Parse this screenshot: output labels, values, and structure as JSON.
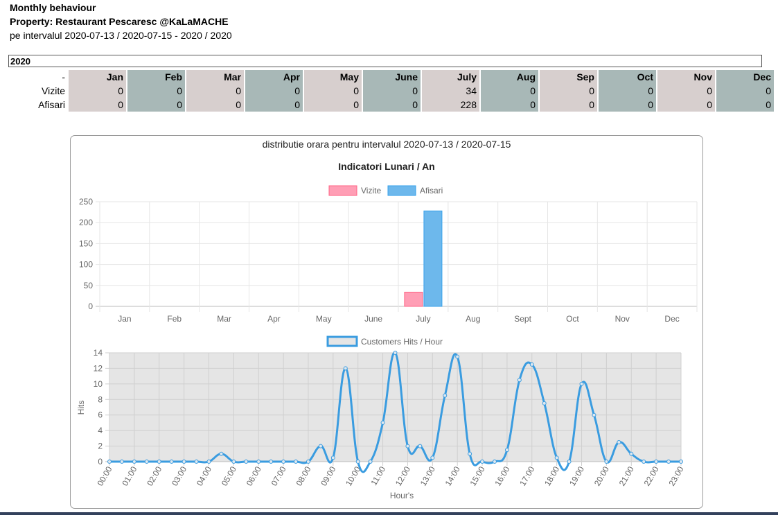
{
  "header": {
    "title": "Monthly behaviour",
    "property": "Property: Restaurant Pescaresc @KaLaMACHE",
    "interval": "pe intervalul 2020-07-13 / 2020-07-15 - 2020 / 2020"
  },
  "year": "2020",
  "table": {
    "corner": "-",
    "months": [
      "Jan",
      "Feb",
      "Mar",
      "Apr",
      "May",
      "June",
      "July",
      "Aug",
      "Sep",
      "Oct",
      "Nov",
      "Dec"
    ],
    "rows": [
      {
        "label": "Vizite",
        "values": [
          "0",
          "0",
          "0",
          "0",
          "0",
          "0",
          "34",
          "0",
          "0",
          "0",
          "0",
          "0"
        ]
      },
      {
        "label": "Afisari",
        "values": [
          "0",
          "0",
          "0",
          "0",
          "0",
          "0",
          "228",
          "0",
          "0",
          "0",
          "0",
          "0"
        ]
      }
    ]
  },
  "panel": {
    "subtitle": "distributie orara pentru intervalul 2020-07-13 / 2020-07-15"
  },
  "colors": {
    "vizite_fill": "#ff9eb5",
    "vizite_border": "#ff6384",
    "afisari_fill": "#6db8ec",
    "afisari_border": "#36a2eb",
    "hits_line": "#3a9ce0",
    "hits_fill": "#e5e5e5"
  },
  "chart_data": [
    {
      "type": "bar",
      "title": "Indicatori Lunari / An",
      "categories": [
        "Jan",
        "Feb",
        "Mar",
        "Apr",
        "May",
        "June",
        "July",
        "Aug",
        "Sept",
        "Oct",
        "Nov",
        "Dec"
      ],
      "series": [
        {
          "name": "Vizite",
          "values": [
            0,
            0,
            0,
            0,
            0,
            0,
            34,
            0,
            0,
            0,
            0,
            0
          ]
        },
        {
          "name": "Afisari",
          "values": [
            0,
            0,
            0,
            0,
            0,
            0,
            228,
            0,
            0,
            0,
            0,
            0
          ]
        }
      ],
      "ylim": [
        0,
        250
      ],
      "yticks": [
        0,
        50,
        100,
        150,
        200,
        250
      ],
      "legend": "top",
      "grid": true
    },
    {
      "type": "line",
      "xlabel": "Hour's",
      "ylabel": "Hits",
      "ylim": [
        0,
        14
      ],
      "yticks": [
        0,
        2,
        4,
        6,
        8,
        10,
        12,
        14
      ],
      "xticks": [
        "00:00",
        "01:00",
        "02:00",
        "03:00",
        "04:00",
        "05:00",
        "06:00",
        "07:00",
        "08:00",
        "09:00",
        "10:00",
        "11:00",
        "12:00",
        "13:00",
        "14:00",
        "15:00",
        "16:00",
        "17:00",
        "18:00",
        "19:00",
        "20:00",
        "21:00",
        "22:00",
        "23:00"
      ],
      "series": [
        {
          "name": "Customers Hits / Hour",
          "x": [
            0,
            0.5,
            1,
            1.5,
            2,
            2.5,
            3,
            3.5,
            4,
            4.5,
            5,
            5.5,
            6,
            6.5,
            7,
            7.5,
            8,
            8.5,
            9,
            9.5,
            10,
            10.5,
            11,
            11.5,
            12,
            12.5,
            13,
            13.5,
            14,
            14.5,
            15,
            15.5,
            16,
            16.5,
            17,
            17.5,
            18,
            18.5,
            19,
            19.5,
            20,
            20.5,
            21,
            21.5,
            22,
            22.5,
            23
          ],
          "values": [
            0,
            0,
            0,
            0,
            0,
            0,
            0,
            0,
            0,
            1,
            0,
            0,
            0,
            0,
            0,
            0,
            0,
            2,
            0.5,
            12,
            0,
            0,
            5,
            14,
            2,
            2,
            0.5,
            8.5,
            13.5,
            1,
            0,
            0,
            1.5,
            10.5,
            12.5,
            7.5,
            0.5,
            0,
            10,
            6,
            0,
            2.5,
            1,
            0,
            0,
            0,
            0
          ]
        }
      ],
      "legend": "top",
      "grid": true
    }
  ]
}
